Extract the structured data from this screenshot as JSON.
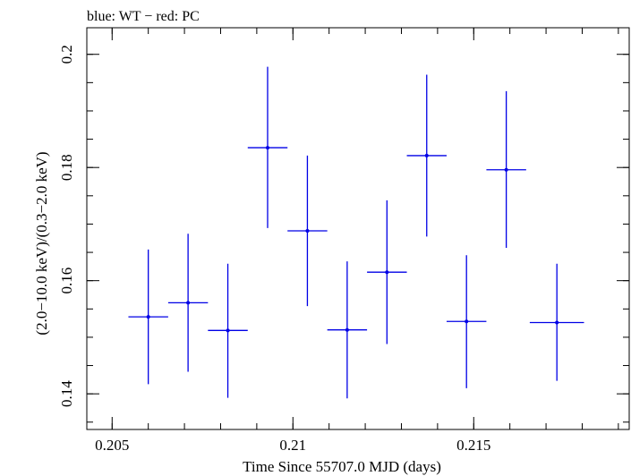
{
  "chart_data": {
    "type": "scatter",
    "title": "blue: WT − red: PC",
    "xlabel": "Time Since 55707.0 MJD (days)",
    "ylabel": "(2.0−10.0 keV)/(0.3−2.0 keV)",
    "xlim": [
      0.2043,
      0.2193
    ],
    "ylim": [
      0.1337,
      0.2047
    ],
    "x_ticks": [
      {
        "value": 0.205,
        "label": "0.205"
      },
      {
        "value": 0.21,
        "label": "0.21"
      },
      {
        "value": 0.215,
        "label": "0.215"
      }
    ],
    "y_ticks": [
      {
        "value": 0.14,
        "label": "0.14"
      },
      {
        "value": 0.16,
        "label": "0.16"
      },
      {
        "value": 0.18,
        "label": "0.18"
      },
      {
        "value": 0.2,
        "label": "0.2"
      }
    ],
    "x_minor_step": 0.001,
    "y_minor_step": 0.005,
    "grid": false,
    "series": [
      {
        "color": "#0000e6",
        "points": [
          {
            "x": 0.206,
            "y": 0.1536,
            "xerr": 0.00055,
            "ylo": 0.1417,
            "yhi": 0.1655
          },
          {
            "x": 0.2071,
            "y": 0.1561,
            "xerr": 0.00055,
            "ylo": 0.1439,
            "yhi": 0.1683
          },
          {
            "x": 0.2082,
            "y": 0.1512,
            "xerr": 0.00055,
            "ylo": 0.1393,
            "yhi": 0.163
          },
          {
            "x": 0.2093,
            "y": 0.1835,
            "xerr": 0.00055,
            "ylo": 0.1693,
            "yhi": 0.1978
          },
          {
            "x": 0.2104,
            "y": 0.1688,
            "xerr": 0.00055,
            "ylo": 0.1555,
            "yhi": 0.1821
          },
          {
            "x": 0.2115,
            "y": 0.1513,
            "xerr": 0.00055,
            "ylo": 0.1392,
            "yhi": 0.1634
          },
          {
            "x": 0.2126,
            "y": 0.1615,
            "xerr": 0.00055,
            "ylo": 0.1488,
            "yhi": 0.1742
          },
          {
            "x": 0.2137,
            "y": 0.1821,
            "xerr": 0.00055,
            "ylo": 0.1678,
            "yhi": 0.1964
          },
          {
            "x": 0.2148,
            "y": 0.1528,
            "xerr": 0.00055,
            "ylo": 0.141,
            "yhi": 0.1645
          },
          {
            "x": 0.2159,
            "y": 0.1796,
            "xerr": 0.00055,
            "ylo": 0.1658,
            "yhi": 0.1935
          },
          {
            "x": 0.2173,
            "y": 0.1526,
            "xerr": 0.00075,
            "ylo": 0.1423,
            "yhi": 0.163
          }
        ]
      }
    ]
  }
}
